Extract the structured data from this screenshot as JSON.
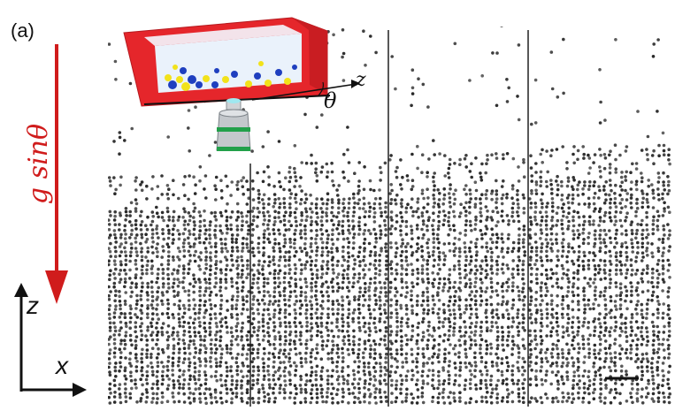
{
  "panel_label": "(a)",
  "gravity_label": "g sinθ",
  "axes": {
    "vertical": "z",
    "horizontal": "x"
  },
  "setup_labels": {
    "axis": "z",
    "angle": "θ"
  },
  "colors": {
    "gravity_arrow": "#d01c1c",
    "container": "#e5262b",
    "particle_blue": "#1f3fbf",
    "particle_yellow": "#f2e21a"
  },
  "icons": [
    "tilted-container-icon",
    "microscope-objective-icon",
    "scale-bar"
  ]
}
